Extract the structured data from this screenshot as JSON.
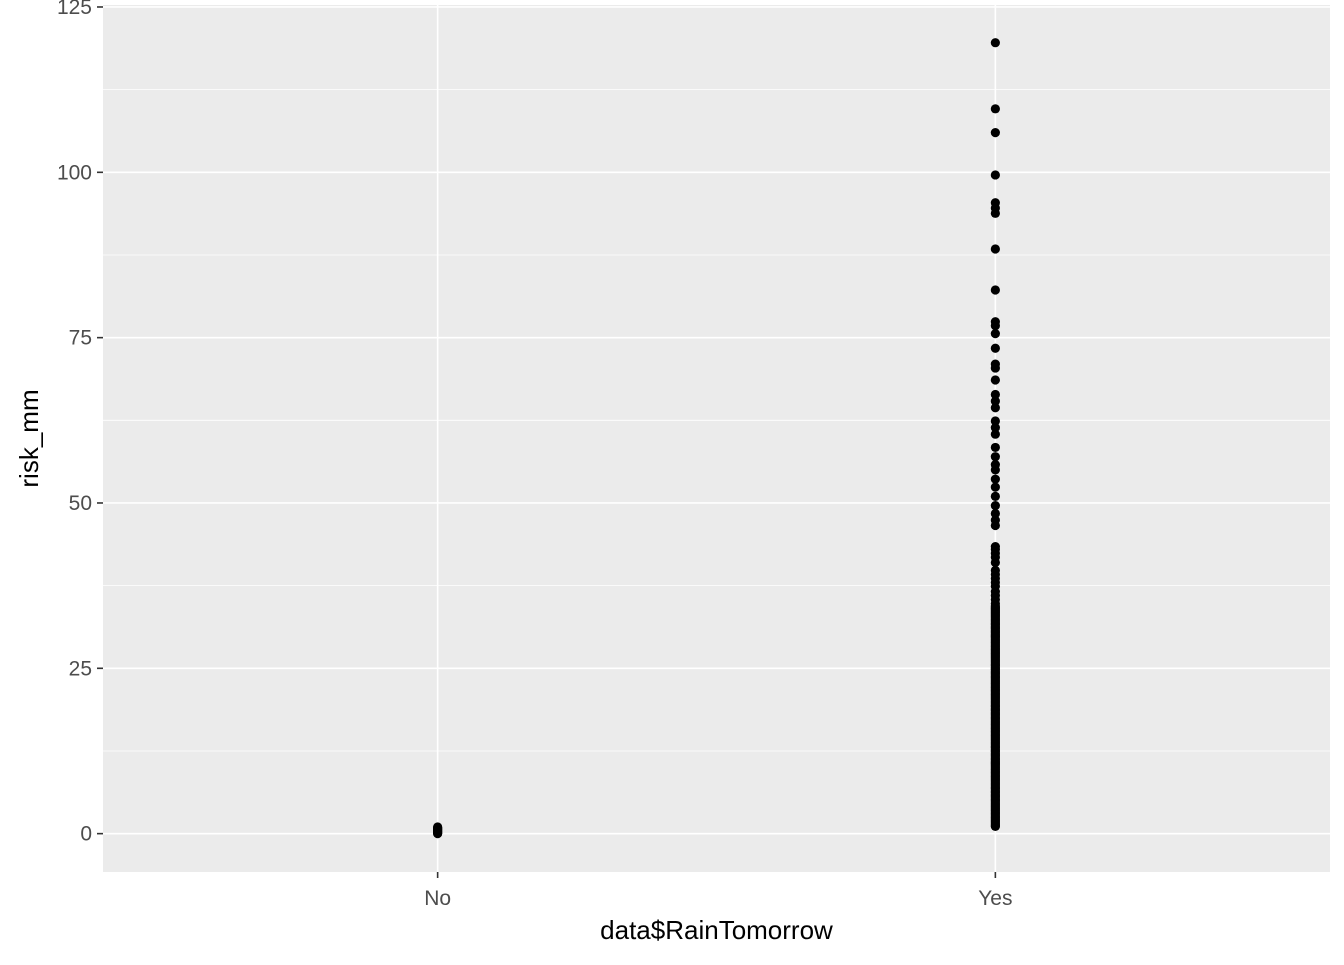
{
  "chart_data": {
    "type": "scatter",
    "title": "",
    "xlabel": "data$RainTomorrow",
    "ylabel": "risk_mm",
    "categories": [
      "No",
      "Yes"
    ],
    "x_ticks": [
      "No",
      "Yes"
    ],
    "y_ticks": [
      0,
      25,
      50,
      75,
      100,
      125
    ],
    "ylim": [
      -5.8,
      125.3
    ],
    "grid": true,
    "legend": "none",
    "colors": {
      "panel_background": "#EBEBEB",
      "gridline": "#FFFFFF",
      "point": "#000000",
      "axis_text": "#4D4D4D",
      "axis_title": "#000000"
    },
    "series": [
      {
        "category": "No",
        "values": [
          0,
          0.1,
          0.2,
          0.3,
          0.4,
          0.5,
          0.6,
          0.7,
          0.8,
          0.9,
          1.0
        ]
      },
      {
        "category": "Yes",
        "values": [
          1.1,
          1.2,
          1.4,
          1.6,
          1.8,
          2,
          2.2,
          2.4,
          2.6,
          2.8,
          3,
          3.2,
          3.4,
          3.6,
          3.8,
          4,
          4.2,
          4.4,
          4.6,
          4.8,
          5,
          5.2,
          5.4,
          5.6,
          5.8,
          6,
          6.2,
          6.4,
          6.6,
          6.8,
          7,
          7.2,
          7.4,
          7.6,
          7.8,
          8,
          8.2,
          8.4,
          8.6,
          8.8,
          9,
          9.2,
          9.4,
          9.6,
          9.8,
          10,
          10.2,
          10.4,
          10.6,
          10.8,
          11,
          11.2,
          11.4,
          11.6,
          11.8,
          12,
          12.2,
          12.4,
          12.6,
          12.8,
          13,
          13.2,
          13.4,
          13.6,
          13.8,
          14,
          14.2,
          14.4,
          14.6,
          14.8,
          15,
          15.2,
          15.4,
          15.6,
          15.8,
          16,
          16.2,
          16.4,
          16.6,
          16.8,
          17,
          17.2,
          17.4,
          17.6,
          17.8,
          18,
          18.2,
          18.4,
          18.6,
          18.8,
          19,
          19.2,
          19.4,
          19.6,
          19.8,
          20,
          20.2,
          20.4,
          20.6,
          20.8,
          21,
          21.2,
          21.4,
          21.6,
          21.8,
          22,
          22.2,
          22.4,
          22.6,
          22.8,
          23,
          23.2,
          23.4,
          23.6,
          23.8,
          24,
          24.2,
          24.4,
          24.6,
          24.8,
          25,
          25.2,
          25.4,
          25.6,
          25.8,
          26,
          26.2,
          26.4,
          26.6,
          26.8,
          27,
          27.2,
          27.4,
          27.6,
          27.8,
          28,
          28.2,
          28.4,
          28.6,
          28.8,
          29,
          29.2,
          29.4,
          29.6,
          29.8,
          30,
          30.2,
          30.4,
          30.6,
          30.8,
          31,
          31.2,
          31.4,
          31.6,
          31.8,
          32,
          32.2,
          32.4,
          32.6,
          32.8,
          33,
          33.2,
          33.4,
          33.6,
          33.8,
          34,
          34.2,
          34.4,
          34.8,
          35.4,
          36,
          36.6,
          37.4,
          38,
          38.6,
          39.2,
          39.8,
          41,
          41.8,
          42.4,
          43,
          43.4,
          46.6,
          47.4,
          48.4,
          49.6,
          51,
          52.4,
          53.6,
          55,
          55.8,
          57,
          58.4,
          60.4,
          61.4,
          62.4,
          64.4,
          65.4,
          66.4,
          68.6,
          70.4,
          71,
          73.4,
          75.6,
          76.8,
          77.4,
          82.2,
          88.4,
          93.8,
          94.6,
          95.4,
          99.6,
          106,
          109.6,
          119.6
        ]
      }
    ]
  }
}
